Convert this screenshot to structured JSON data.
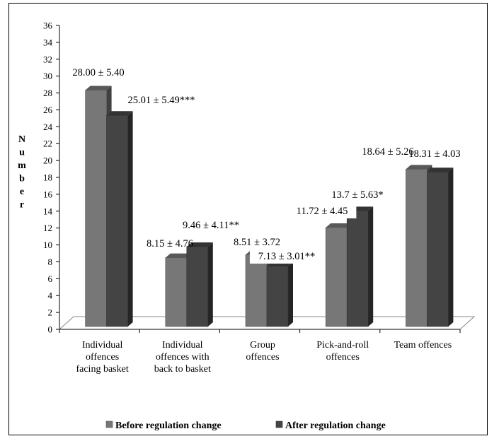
{
  "chart_data": {
    "type": "bar",
    "ylabel": "Number",
    "ylim": [
      0,
      36
    ],
    "ytick_step": 2,
    "grid": false,
    "legend_position": "bottom",
    "categories": [
      [
        "Individual",
        "offences",
        "facing basket"
      ],
      [
        "Individual",
        "offences with",
        "back to basket"
      ],
      [
        "Group",
        "offences"
      ],
      [
        "Pick-and-roll",
        "offences"
      ],
      [
        "Team offences"
      ]
    ],
    "series": [
      {
        "name": "Before regulation change",
        "color": "#777777",
        "values": [
          28.0,
          8.15,
          8.51,
          11.72,
          18.64
        ],
        "labels": [
          "28.00 ± 5.40",
          "8.15 ± 4.76",
          "8.51 ± 3.72",
          "11.72 ± 4.45",
          "18.64 ± 5.26"
        ]
      },
      {
        "name": "After regulation change",
        "color": "#444444",
        "values": [
          25.01,
          9.46,
          7.13,
          13.7,
          18.31
        ],
        "labels": [
          "25.01 ± 5.49***",
          "9.46 ± 4.11**",
          "7.13 ± 3.01**",
          "13.7 ± 5.63*",
          "18.31 ± 4.03"
        ]
      }
    ]
  }
}
